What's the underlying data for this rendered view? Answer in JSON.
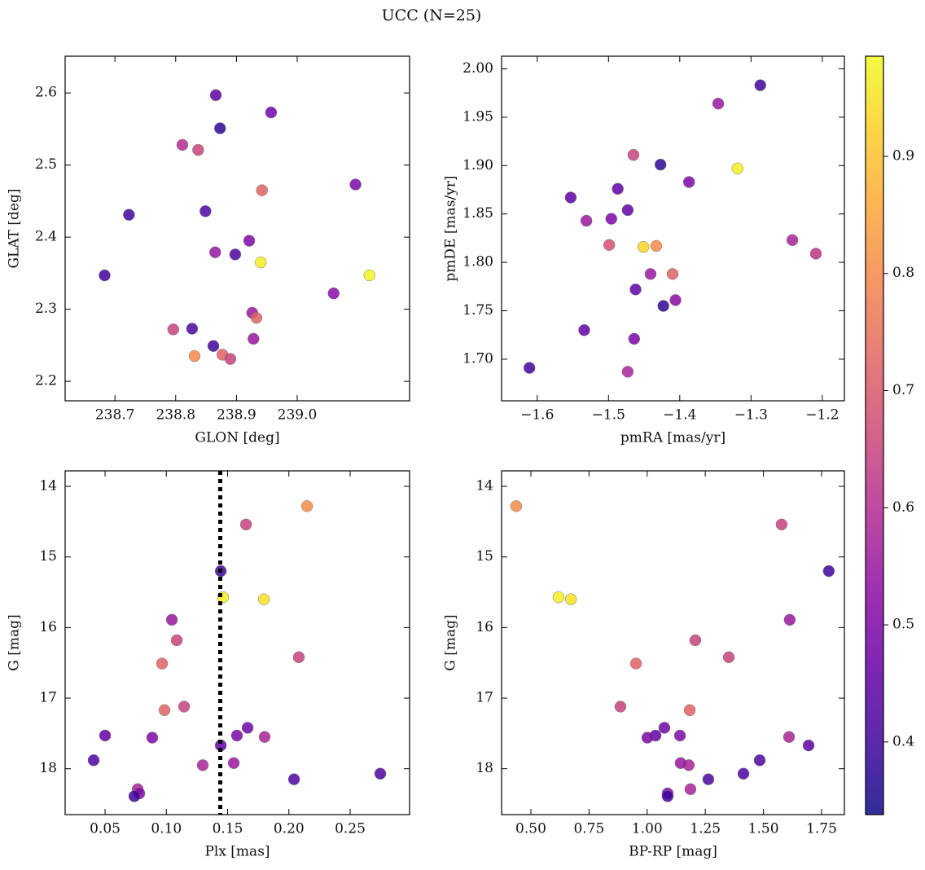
{
  "figure_title": "UCC (N=25)",
  "colorbar": {
    "colormap": "plasma",
    "clim": [
      0.338,
      0.9855
    ],
    "ticks": [
      0.4,
      0.5,
      0.6,
      0.7,
      0.8,
      0.9
    ]
  },
  "chart_data": [
    {
      "type": "scatter",
      "xlabel": "GLON [deg]",
      "ylabel": "GLAT [deg]",
      "xlim": [
        238.618,
        239.185
      ],
      "ylim": [
        2.173,
        2.651
      ],
      "xticks": [
        238.7,
        238.8,
        238.9,
        {
          "value": 239,
          "label": "239.0"
        }
      ],
      "yticks": [
        2.2,
        2.3,
        2.4,
        2.5,
        2.6
      ],
      "x": [
        238.866,
        238.873,
        238.957,
        238.811,
        238.837,
        238.942,
        239.096,
        238.723,
        238.849,
        238.921,
        238.865,
        238.898,
        238.94,
        238.683,
        239.119,
        239.06,
        238.926,
        238.933,
        238.796,
        238.827,
        238.928,
        238.862,
        238.831,
        238.877,
        238.89
      ],
      "y": [
        2.597,
        2.551,
        2.573,
        2.528,
        2.521,
        2.465,
        2.473,
        2.431,
        2.436,
        2.395,
        2.379,
        2.376,
        2.365,
        2.347,
        2.347,
        2.322,
        2.295,
        2.288,
        2.272,
        2.273,
        2.259,
        2.249,
        2.235,
        2.237,
        2.231
      ],
      "c": [
        0.45,
        0.38,
        0.48,
        0.6,
        0.65,
        0.72,
        0.5,
        0.4,
        0.42,
        0.5,
        0.55,
        0.42,
        0.97,
        0.4,
        0.98,
        0.52,
        0.55,
        0.72,
        0.65,
        0.42,
        0.55,
        0.4,
        0.8,
        0.72,
        0.65
      ]
    },
    {
      "type": "scatter",
      "xlabel": "pmRA [mas/yr]",
      "ylabel": "pmDE [mas/yr]",
      "xlim": [
        -1.65,
        -1.169
      ],
      "ylim": [
        1.657,
        2.013
      ],
      "xticks": [
        {
          "value": -1.6,
          "label": "−1.6"
        },
        {
          "value": -1.5,
          "label": "−1.5"
        },
        {
          "value": -1.4,
          "label": "−1.4"
        },
        {
          "value": -1.3,
          "label": "−1.3"
        },
        {
          "value": -1.2,
          "label": "−1.2"
        }
      ],
      "yticks": [
        {
          "value": 1.7,
          "label": "1.70"
        },
        1.75,
        {
          "value": 1.8,
          "label": "1.80"
        },
        1.85,
        {
          "value": 1.9,
          "label": "1.90"
        },
        1.95,
        {
          "value": 2,
          "label": "2.00"
        }
      ],
      "x": [
        -1.287,
        -1.346,
        -1.465,
        -1.427,
        -1.319,
        -1.387,
        -1.487,
        -1.553,
        -1.473,
        -1.531,
        -1.496,
        -1.242,
        -1.209,
        -1.499,
        -1.451,
        -1.433,
        -1.441,
        -1.41,
        -1.462,
        -1.406,
        -1.423,
        -1.534,
        -1.464,
        -1.611,
        -1.473
      ],
      "y": [
        1.983,
        1.964,
        1.911,
        1.901,
        1.897,
        1.883,
        1.876,
        1.867,
        1.854,
        1.843,
        1.845,
        1.823,
        1.809,
        1.818,
        1.816,
        1.817,
        1.788,
        1.788,
        1.772,
        1.761,
        1.755,
        1.73,
        1.721,
        1.691,
        1.687
      ],
      "c": [
        0.4,
        0.55,
        0.65,
        0.38,
        0.97,
        0.5,
        0.45,
        0.45,
        0.45,
        0.55,
        0.5,
        0.58,
        0.62,
        0.68,
        0.93,
        0.8,
        0.55,
        0.72,
        0.45,
        0.52,
        0.38,
        0.45,
        0.5,
        0.4,
        0.58
      ]
    },
    {
      "type": "scatter",
      "xlabel": "Plx [mas]",
      "ylabel": "G [mag]",
      "xlim": [
        0.0174,
        0.2985
      ],
      "ylim": [
        18.65,
        13.78
      ],
      "vline": 0.144,
      "xticks": [
        0.05,
        {
          "value": 0.1,
          "label": "0.10"
        },
        0.15,
        {
          "value": 0.2,
          "label": "0.20"
        },
        0.25
      ],
      "yticks": [
        14,
        15,
        16,
        17,
        18
      ],
      "x": [
        0.2148,
        0.165,
        0.1444,
        0.1463,
        0.1796,
        0.1045,
        0.1085,
        0.2081,
        0.0965,
        0.1145,
        0.0985,
        0.1663,
        0.05,
        0.1576,
        0.0885,
        0.1802,
        0.1444,
        0.1297,
        0.155,
        0.0407,
        0.2746,
        0.2042,
        0.0766,
        0.0779,
        0.0739
      ],
      "y": [
        14.28,
        14.54,
        15.2,
        15.57,
        15.6,
        15.89,
        16.18,
        16.42,
        16.51,
        17.12,
        17.17,
        17.42,
        17.53,
        17.53,
        17.56,
        17.55,
        17.67,
        17.95,
        17.92,
        17.88,
        18.07,
        18.15,
        18.29,
        18.35,
        18.39
      ],
      "c": [
        0.8,
        0.65,
        0.4,
        0.97,
        0.95,
        0.55,
        0.65,
        0.65,
        0.72,
        0.65,
        0.72,
        0.48,
        0.45,
        0.5,
        0.5,
        0.58,
        0.45,
        0.58,
        0.55,
        0.42,
        0.42,
        0.42,
        0.58,
        0.5,
        0.4
      ]
    },
    {
      "type": "scatter",
      "xlabel": "BP-RP [mag]",
      "ylabel": "G [mag]",
      "xlim": [
        0.374,
        1.848
      ],
      "ylim": [
        18.65,
        13.78
      ],
      "xticks": [
        {
          "value": 0.5,
          "label": "0.50"
        },
        0.75,
        {
          "value": 1,
          "label": "1.00"
        },
        1.25,
        {
          "value": 1.5,
          "label": "1.50"
        },
        1.75
      ],
      "yticks": [
        14,
        15,
        16,
        17,
        18
      ],
      "x": [
        0.437,
        1.578,
        1.781,
        0.619,
        0.672,
        1.613,
        1.207,
        1.351,
        0.952,
        0.885,
        1.183,
        1.074,
        1.036,
        1.141,
        1.001,
        1.61,
        1.694,
        1.179,
        1.144,
        1.484,
        1.414,
        1.263,
        1.186,
        1.088,
        1.088
      ],
      "y": [
        14.28,
        14.54,
        15.2,
        15.57,
        15.6,
        15.89,
        16.18,
        16.42,
        16.51,
        17.12,
        17.17,
        17.42,
        17.53,
        17.53,
        17.56,
        17.55,
        17.67,
        17.95,
        17.92,
        17.88,
        18.07,
        18.15,
        18.29,
        18.35,
        18.39
      ],
      "c": [
        0.8,
        0.65,
        0.4,
        0.97,
        0.95,
        0.55,
        0.65,
        0.65,
        0.72,
        0.65,
        0.72,
        0.48,
        0.45,
        0.5,
        0.5,
        0.58,
        0.45,
        0.58,
        0.55,
        0.42,
        0.42,
        0.42,
        0.58,
        0.5,
        0.4
      ]
    }
  ]
}
